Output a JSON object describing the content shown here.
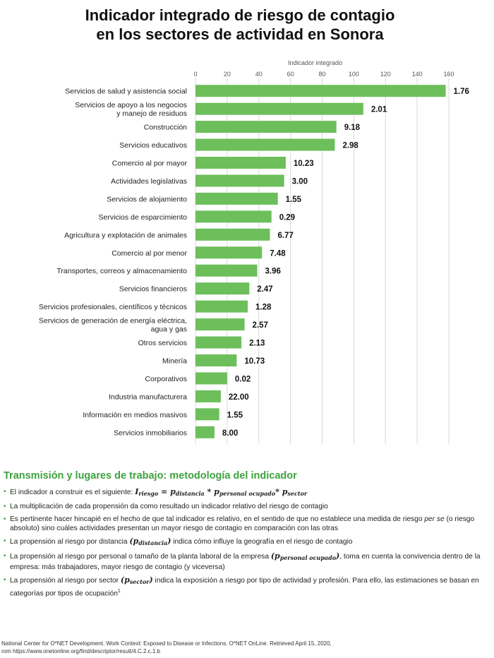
{
  "title": {
    "line1": "Indicador integrado de riesgo de contagio",
    "line2": "en los sectores de actividad en Sonora"
  },
  "chart_data": {
    "type": "bar",
    "orientation": "horizontal",
    "xlabel": "Indicador integrado",
    "xlim": [
      0,
      160
    ],
    "xticks": [
      0,
      20,
      40,
      60,
      80,
      100,
      120,
      140,
      160
    ],
    "grid": true,
    "bar_color": "#6cbf5b",
    "categories": [
      "Servicios de salud y asistencia social",
      "Servicios de apoyo a los negocios|y manejo de residuos",
      "Construcción",
      "Servicios educativos",
      "Comercio al por mayor",
      "Actividades legislativas",
      "Servicios de alojamiento",
      "Servicios de esparcimiento",
      "Agricultura y explotación de animales",
      "Comercio al por menor",
      "Transportes, correos y almacenamiento",
      "Servicios financieros",
      "Servicios profesionales, científicos y técnicos",
      "Servicios de generación de energía eléctrica,|agua y gas",
      "Otros servicios",
      "Minería",
      "Corporativos",
      "Industria manufacturera",
      "Información en medios masivos",
      "Servicios inmobiliarios"
    ],
    "values": [
      158,
      106,
      89,
      88,
      57,
      56,
      52,
      48,
      47,
      42,
      39,
      34,
      33,
      31,
      29,
      26,
      20,
      16,
      15,
      12
    ],
    "data_labels": [
      "1.76",
      "2.01",
      "9.18",
      "2.98",
      "10.23",
      "3.00",
      "1.55",
      "0.29",
      "6.77",
      "7.48",
      "3.96",
      "2.47",
      "1.28",
      "2.57",
      "2.13",
      "10.73",
      "0.02",
      "22.00",
      "1.55",
      "8.00"
    ]
  },
  "method": {
    "heading": "Transmisión y lugares de trabajo: metodología del indicador",
    "b1_text": "El indicador a construir es el siguiente: ",
    "b1_formula": "I",
    "b1_sub1": "riesgo",
    "b1_eq": " = p",
    "b1_sub2": "distancia",
    "b1_mul1": " * p",
    "b1_sub3": "personal ocupado",
    "b1_mul2": "* p",
    "b1_sub4": "sector",
    "b2": "La multiplicación de cada propensión da como resultado un indicador relativo del riesgo de contagio",
    "b3_a": "Es pertinente hacer hincapié en el hecho de que tal indicador es relativo, en el sentido de que no establece una medida de riesgo ",
    "b3_em": "per se",
    "b3_b": " (o riesgo absoluto) sino cuáles actividades presentan un mayor riesgo de contagio en comparación con las otras",
    "b4_a": "La propensión al riesgo por distancia ",
    "b4_p": "(p",
    "b4_sub": "distancia",
    "b4_close": ")",
    "b4_b": " indica cómo influye la geografía en el riesgo de contagio",
    "b5_a": "La propensión al riesgo por personal o tamaño de la planta laboral de la empresa ",
    "b5_p": "(p",
    "b5_sub": "personal ocupado",
    "b5_close": ")",
    "b5_b": ", toma en cuenta la convivencia dentro de la empresa: más trabajadores, mayor riesgo de contagio (y viceversa)",
    "b6_a": "La propensión al riesgo por sector ",
    "b6_p": "(p",
    "b6_sub": "sector",
    "b6_close": ")",
    "b6_b": " indica la exposición a riesgo por tipo de actividad y profesión. Para ello, las estimaciones se basan en categorías por tipos de ocupación",
    "b6_sup": "1"
  },
  "footer": {
    "line1": "National Center for O*NET Development. Work Context: Exposed to Disease or Infections. O*NET OnLine. Retrieved April 15, 2020,",
    "line2": "rom https://www.onetonline.org/find/descriptor/result/4.C.2.c.1.b"
  }
}
